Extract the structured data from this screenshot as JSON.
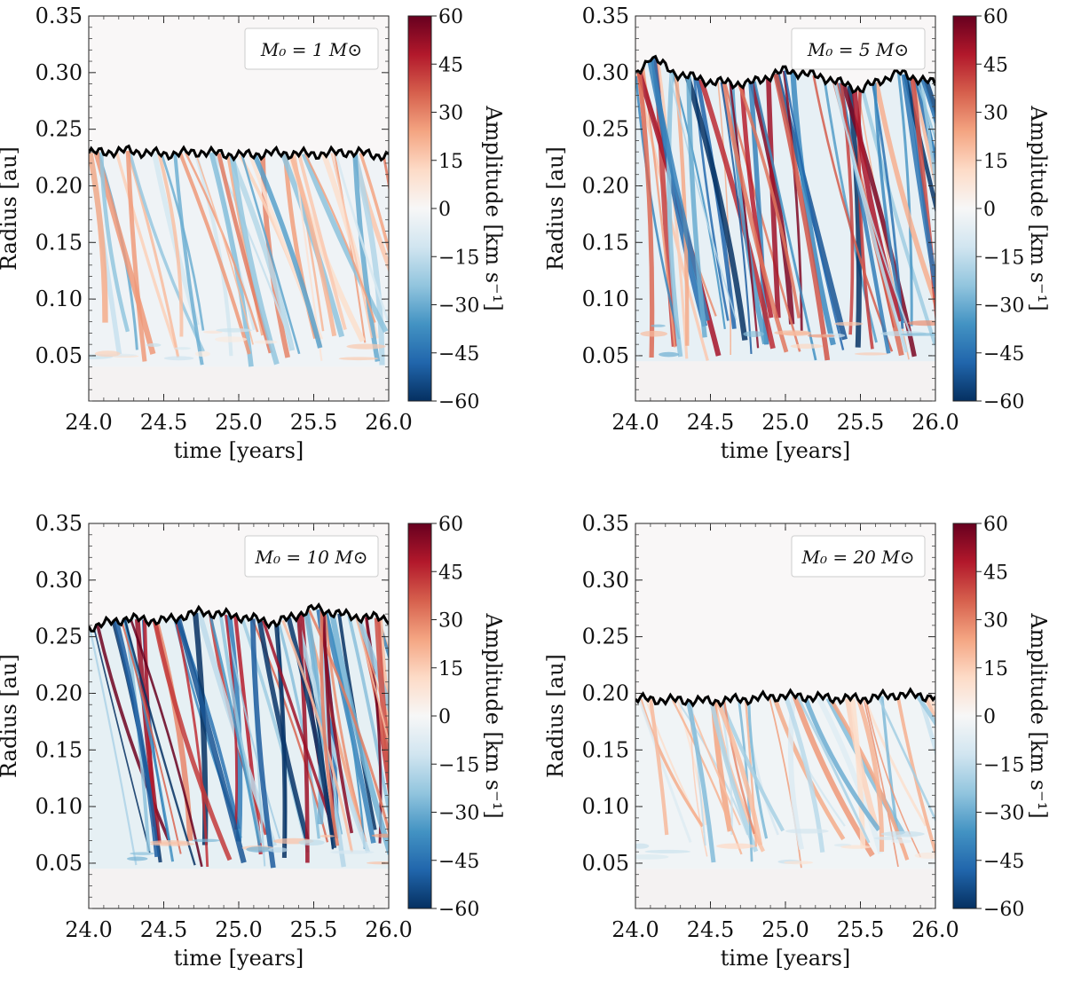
{
  "colorbar": {
    "label": "Amplitude [km s⁻¹]",
    "ticks": [
      60,
      45,
      30,
      15,
      0,
      -15,
      -30,
      -45,
      -60
    ],
    "tick_labels": [
      "60",
      "45",
      "30",
      "15",
      "0",
      "−15",
      "−30",
      "−45",
      "−60"
    ],
    "range": [
      -60,
      60
    ],
    "colormap": "RdBu_r",
    "colors": [
      "#053061",
      "#2166ac",
      "#4393c3",
      "#92c5de",
      "#d1e5f0",
      "#f7f7f7",
      "#fddbc7",
      "#f4a582",
      "#d6604d",
      "#b2182b",
      "#67001f"
    ]
  },
  "chart_data": [
    {
      "type": "heatmap",
      "legend": {
        "text": "M₀ = 1 M⊙",
        "position": "top-right"
      },
      "xlabel": "time [years]",
      "ylabel": "Radius [au]",
      "xlim": [
        24.0,
        26.0
      ],
      "ylim": [
        0.01,
        0.35
      ],
      "x_ticks": [
        "24.0",
        "24.5",
        "25.0",
        "25.5",
        "26.0"
      ],
      "y_ticks": [
        "0.05",
        "0.10",
        "0.15",
        "0.20",
        "0.25",
        "0.30",
        "0.35"
      ],
      "boundary_radius": {
        "x": [
          24.0,
          24.25,
          24.5,
          24.75,
          25.0,
          25.25,
          25.5,
          25.75,
          26.0
        ],
        "y": [
          0.229,
          0.231,
          0.228,
          0.23,
          0.227,
          0.229,
          0.228,
          0.23,
          0.226
        ]
      },
      "inner_radius": 0.04,
      "amplitude_scale": 0.55
    },
    {
      "type": "heatmap",
      "legend": {
        "text": "M₀ = 5 M⊙",
        "position": "top-right"
      },
      "xlabel": "time [years]",
      "ylabel": "Radius [au]",
      "xlim": [
        24.0,
        26.0
      ],
      "ylim": [
        0.01,
        0.35
      ],
      "x_ticks": [
        "24.0",
        "24.5",
        "25.0",
        "25.5",
        "26.0"
      ],
      "y_ticks": [
        "0.05",
        "0.10",
        "0.15",
        "0.20",
        "0.25",
        "0.30",
        "0.35"
      ],
      "boundary_radius": {
        "x": [
          24.0,
          24.1,
          24.25,
          24.5,
          24.75,
          25.0,
          25.25,
          25.5,
          25.75,
          26.0
        ],
        "y": [
          0.296,
          0.315,
          0.3,
          0.292,
          0.29,
          0.302,
          0.296,
          0.285,
          0.3,
          0.29
        ]
      },
      "inner_radius": 0.045,
      "amplitude_scale": 1.0
    },
    {
      "type": "heatmap",
      "legend": {
        "text": "M₀ = 10 M⊙",
        "position": "top-right"
      },
      "xlabel": "time [years]",
      "ylabel": "Radius [au]",
      "xlim": [
        24.0,
        26.0
      ],
      "ylim": [
        0.01,
        0.35
      ],
      "x_ticks": [
        "24.0",
        "24.5",
        "25.0",
        "25.5",
        "26.0"
      ],
      "y_ticks": [
        "0.05",
        "0.10",
        "0.15",
        "0.20",
        "0.25",
        "0.30",
        "0.35"
      ],
      "boundary_radius": {
        "x": [
          24.0,
          24.25,
          24.5,
          24.75,
          25.0,
          25.25,
          25.5,
          25.75,
          26.0
        ],
        "y": [
          0.258,
          0.266,
          0.264,
          0.272,
          0.268,
          0.262,
          0.275,
          0.268,
          0.266
        ]
      },
      "inner_radius": 0.045,
      "amplitude_scale": 1.05
    },
    {
      "type": "heatmap",
      "legend": {
        "text": "M₀ = 20 M⊙",
        "position": "top-right"
      },
      "xlabel": "time [years]",
      "ylabel": "Radius [au]",
      "xlim": [
        24.0,
        26.0
      ],
      "ylim": [
        0.01,
        0.35
      ],
      "x_ticks": [
        "24.0",
        "24.5",
        "25.0",
        "25.5",
        "26.0"
      ],
      "y_ticks": [
        "0.05",
        "0.10",
        "0.15",
        "0.20",
        "0.25",
        "0.30",
        "0.35"
      ],
      "boundary_radius": {
        "x": [
          24.0,
          24.25,
          24.5,
          24.75,
          25.0,
          25.25,
          25.5,
          25.75,
          26.0
        ],
        "y": [
          0.195,
          0.194,
          0.193,
          0.195,
          0.198,
          0.196,
          0.195,
          0.199,
          0.197
        ]
      },
      "inner_radius": 0.045,
      "amplitude_scale": 0.5
    }
  ]
}
